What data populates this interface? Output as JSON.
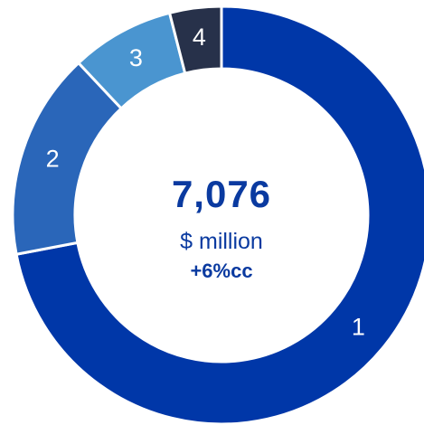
{
  "chart_data": {
    "type": "pie",
    "title": "",
    "categories": [
      "1",
      "2",
      "3",
      "4"
    ],
    "values": [
      72,
      16,
      8,
      4
    ],
    "center": {
      "value": "7,076",
      "unit": "$ million",
      "change": "+6%cc"
    },
    "colors": [
      "#0037A8",
      "#2A66B9",
      "#4A95D0",
      "#27314A"
    ],
    "label_colors": [
      "#FFFFFF",
      "#FFFFFF",
      "#FFFFFF",
      "#FFFFFF"
    ],
    "start_angle_deg": 0,
    "direction": "clockwise",
    "grid": false,
    "legend": "none"
  }
}
